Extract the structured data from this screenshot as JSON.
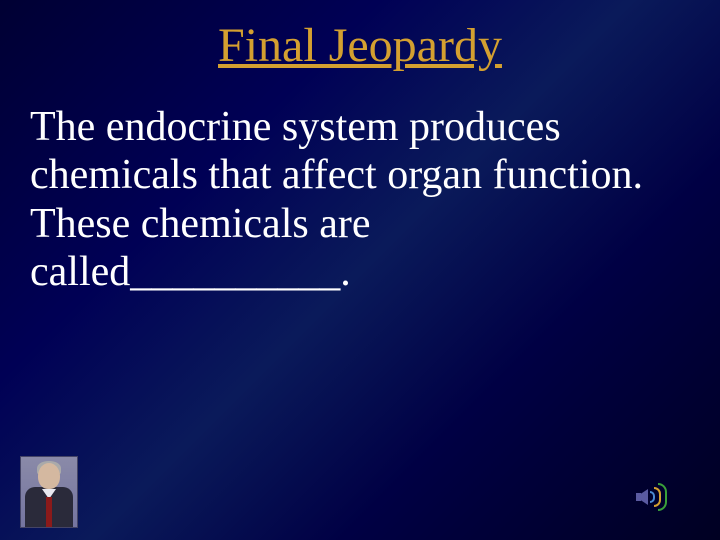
{
  "slide": {
    "title": "Final Jeopardy",
    "body": "The endocrine system produces chemicals that affect organ function. These chemicals are called__________.",
    "title_color": "#d4a030",
    "body_color": "#ffffff",
    "background_start": "#000033",
    "background_end": "#000022",
    "title_fontsize": 48,
    "body_fontsize": 42
  },
  "icons": {
    "host": "game-host-icon",
    "sound": "sound-icon"
  }
}
